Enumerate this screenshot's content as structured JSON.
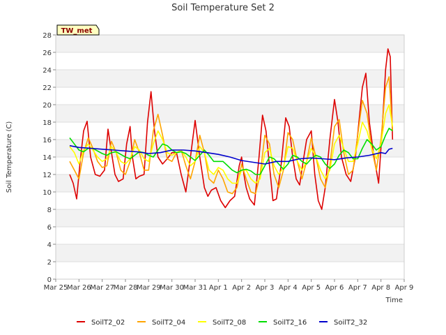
{
  "chart_data": {
    "type": "line",
    "title": "Soil Temperature Set 2",
    "xlabel": "Time",
    "ylabel": "Soil Temperature (C)",
    "tag": "TW_met",
    "ylim": [
      0,
      28
    ],
    "yticks": [
      "0",
      "2",
      "4",
      "6",
      "8",
      "10",
      "12",
      "14",
      "16",
      "18",
      "20",
      "22",
      "24",
      "26",
      "28"
    ],
    "xlim": [
      0,
      15
    ],
    "xticks": [
      "Mar 25",
      "Mar 26",
      "Mar 27",
      "Mar 28",
      "Mar 29",
      "Mar 30",
      "Mar 31",
      "Apr 1",
      "Apr 2",
      "Apr 3",
      "Apr 4",
      "Apr 5",
      "Apr 6",
      "Apr 7",
      "Apr 8",
      "Apr 9"
    ],
    "grid": true,
    "legend_position": "bottom",
    "series": [
      {
        "name": "SoilT2_02",
        "color": "#dd0000",
        "x": [
          0.6,
          0.75,
          0.9,
          1.05,
          1.2,
          1.35,
          1.5,
          1.7,
          1.9,
          2.1,
          2.25,
          2.4,
          2.55,
          2.7,
          2.9,
          3.05,
          3.2,
          3.3,
          3.45,
          3.6,
          3.8,
          3.95,
          4.1,
          4.25,
          4.4,
          4.6,
          4.8,
          5.0,
          5.2,
          5.4,
          5.6,
          5.8,
          6.0,
          6.2,
          6.4,
          6.55,
          6.7,
          6.9,
          7.1,
          7.3,
          7.5,
          7.7,
          7.9,
          8.0,
          8.1,
          8.2,
          8.35,
          8.55,
          8.75,
          8.9,
          9.05,
          9.2,
          9.35,
          9.5,
          9.7,
          9.9,
          10.05,
          10.2,
          10.35,
          10.5,
          10.65,
          10.8,
          11.0,
          11.15,
          11.3,
          11.45,
          11.6,
          11.8,
          12.0,
          12.15,
          12.3,
          12.5,
          12.7,
          12.9,
          13.05,
          13.2,
          13.35,
          13.5,
          13.7,
          13.9,
          14.05,
          14.2,
          14.3,
          14.4,
          14.5
        ],
        "y": [
          12.0,
          11.0,
          9.2,
          13.5,
          17.0,
          18.1,
          14.0,
          12.0,
          11.8,
          12.5,
          17.2,
          14.5,
          12.0,
          11.2,
          11.5,
          15.5,
          17.5,
          14.0,
          11.5,
          11.8,
          12.0,
          18.0,
          21.5,
          17.0,
          14.0,
          13.2,
          13.8,
          14.5,
          14.5,
          12.0,
          10.0,
          14.0,
          18.2,
          14.0,
          10.5,
          9.5,
          10.2,
          10.5,
          9.0,
          8.2,
          9.0,
          9.5,
          13.0,
          14.0,
          12.0,
          10.5,
          9.2,
          8.5,
          14.0,
          18.8,
          17.0,
          13.0,
          9.0,
          9.2,
          13.0,
          18.5,
          17.5,
          14.0,
          11.5,
          10.8,
          13.5,
          16.0,
          17.0,
          12.0,
          9.0,
          8.0,
          10.5,
          16.0,
          20.6,
          18.0,
          14.0,
          12.0,
          11.2,
          14.0,
          18.0,
          22.0,
          23.6,
          18.0,
          14.0,
          11.0,
          17.0,
          24.0,
          26.4,
          25.5,
          16.0
        ]
      },
      {
        "name": "SoilT2_04",
        "color": "#ffa500",
        "x": [
          0.6,
          0.8,
          1.0,
          1.2,
          1.4,
          1.6,
          1.8,
          2.0,
          2.2,
          2.4,
          2.6,
          2.8,
          3.0,
          3.2,
          3.4,
          3.6,
          3.8,
          4.0,
          4.2,
          4.4,
          4.6,
          4.8,
          5.0,
          5.2,
          5.4,
          5.6,
          5.8,
          6.0,
          6.2,
          6.4,
          6.6,
          6.8,
          7.0,
          7.2,
          7.4,
          7.6,
          7.8,
          8.0,
          8.2,
          8.4,
          8.6,
          8.8,
          9.0,
          9.2,
          9.4,
          9.6,
          9.8,
          10.0,
          10.2,
          10.4,
          10.6,
          10.8,
          11.0,
          11.2,
          11.4,
          11.6,
          11.8,
          12.0,
          12.2,
          12.4,
          12.6,
          12.8,
          13.0,
          13.2,
          13.4,
          13.6,
          13.8,
          14.0,
          14.2,
          14.35,
          14.5
        ],
        "y": [
          13.5,
          12.5,
          11.5,
          14.5,
          16.2,
          15.0,
          13.5,
          12.8,
          13.0,
          15.8,
          14.5,
          12.5,
          12.0,
          13.5,
          16.0,
          14.5,
          12.5,
          12.5,
          17.0,
          18.9,
          16.5,
          13.8,
          13.5,
          14.5,
          14.8,
          13.0,
          11.5,
          13.5,
          16.5,
          14.5,
          11.5,
          11.0,
          12.5,
          11.5,
          10.0,
          9.8,
          10.5,
          13.2,
          11.5,
          10.0,
          9.8,
          12.0,
          16.5,
          15.5,
          12.0,
          10.5,
          12.5,
          16.8,
          16.0,
          13.5,
          11.5,
          13.5,
          16.2,
          14.0,
          11.5,
          10.5,
          13.0,
          17.5,
          18.3,
          14.5,
          12.0,
          12.5,
          16.5,
          20.5,
          19.0,
          15.0,
          12.5,
          16.0,
          22.0,
          23.2,
          17.0
        ]
      },
      {
        "name": "SoilT2_08",
        "color": "#ffff00",
        "x": [
          0.6,
          0.8,
          1.0,
          1.2,
          1.4,
          1.6,
          1.8,
          2.0,
          2.2,
          2.4,
          2.6,
          2.8,
          3.0,
          3.2,
          3.4,
          3.6,
          3.8,
          4.0,
          4.2,
          4.4,
          4.6,
          4.8,
          5.0,
          5.2,
          5.4,
          5.6,
          5.8,
          6.0,
          6.2,
          6.4,
          6.6,
          6.8,
          7.0,
          7.2,
          7.4,
          7.6,
          7.8,
          8.0,
          8.2,
          8.4,
          8.6,
          8.8,
          9.0,
          9.2,
          9.4,
          9.6,
          9.8,
          10.0,
          10.2,
          10.4,
          10.6,
          10.8,
          11.0,
          11.2,
          11.4,
          11.6,
          11.8,
          12.0,
          12.2,
          12.4,
          12.6,
          12.8,
          13.0,
          13.2,
          13.4,
          13.6,
          13.8,
          14.0,
          14.2,
          14.35,
          14.5
        ],
        "y": [
          15.2,
          14.5,
          13.2,
          14.8,
          15.5,
          14.8,
          14.0,
          13.5,
          13.8,
          15.2,
          14.5,
          13.5,
          13.2,
          13.8,
          15.2,
          14.8,
          13.8,
          13.5,
          15.5,
          17.0,
          16.0,
          14.5,
          14.2,
          14.5,
          14.8,
          14.0,
          13.0,
          13.5,
          15.2,
          14.5,
          12.5,
          12.0,
          12.8,
          12.5,
          11.5,
          11.0,
          11.0,
          12.5,
          12.5,
          11.5,
          11.0,
          11.5,
          14.5,
          15.0,
          13.0,
          12.0,
          12.8,
          15.2,
          15.0,
          13.5,
          12.5,
          13.5,
          15.0,
          14.0,
          12.5,
          11.5,
          12.5,
          15.5,
          16.5,
          15.0,
          13.5,
          13.5,
          15.5,
          18.0,
          17.0,
          15.0,
          13.8,
          15.5,
          19.0,
          20.0,
          17.5
        ]
      },
      {
        "name": "SoilT2_16",
        "color": "#00dd00",
        "x": [
          0.6,
          0.8,
          1.0,
          1.2,
          1.4,
          1.6,
          1.8,
          2.0,
          2.2,
          2.4,
          2.6,
          2.8,
          3.0,
          3.2,
          3.4,
          3.6,
          3.8,
          4.0,
          4.2,
          4.4,
          4.6,
          4.8,
          5.0,
          5.2,
          5.4,
          5.6,
          5.8,
          6.0,
          6.2,
          6.4,
          6.6,
          6.8,
          7.0,
          7.2,
          7.4,
          7.6,
          7.8,
          8.0,
          8.2,
          8.4,
          8.6,
          8.8,
          9.0,
          9.2,
          9.4,
          9.6,
          9.8,
          10.0,
          10.2,
          10.4,
          10.6,
          10.8,
          11.0,
          11.2,
          11.4,
          11.6,
          11.8,
          12.0,
          12.2,
          12.4,
          12.6,
          12.8,
          13.0,
          13.2,
          13.4,
          13.6,
          13.8,
          14.0,
          14.2,
          14.35,
          14.5
        ],
        "y": [
          16.2,
          15.5,
          14.8,
          14.6,
          15.0,
          15.0,
          14.7,
          14.4,
          14.2,
          14.5,
          14.6,
          14.3,
          14.0,
          13.8,
          14.2,
          14.6,
          14.5,
          14.2,
          14.0,
          14.8,
          15.5,
          15.3,
          14.8,
          14.5,
          14.6,
          14.4,
          14.0,
          13.6,
          14.2,
          14.8,
          14.2,
          13.5,
          13.5,
          13.5,
          13.0,
          12.5,
          12.2,
          12.5,
          12.6,
          12.4,
          12.0,
          12.0,
          13.0,
          14.0,
          13.8,
          13.2,
          12.6,
          13.2,
          14.2,
          14.0,
          13.5,
          13.2,
          13.8,
          14.2,
          14.0,
          13.2,
          12.7,
          13.2,
          14.2,
          14.8,
          14.5,
          13.8,
          13.8,
          15.0,
          16.0,
          15.5,
          14.8,
          15.2,
          16.5,
          17.3,
          17.0
        ]
      },
      {
        "name": "SoilT2_32",
        "color": "#0000cc",
        "x": [
          0.6,
          1.0,
          1.5,
          2.0,
          2.5,
          3.0,
          3.5,
          4.0,
          4.5,
          5.0,
          5.5,
          6.0,
          6.5,
          7.0,
          7.5,
          8.0,
          8.5,
          9.0,
          9.5,
          10.0,
          10.5,
          11.0,
          11.5,
          12.0,
          12.5,
          13.0,
          13.5,
          14.0,
          14.2,
          14.35,
          14.5
        ],
        "y": [
          15.3,
          15.1,
          15.0,
          14.9,
          14.8,
          14.7,
          14.6,
          14.4,
          14.5,
          14.8,
          14.8,
          14.7,
          14.5,
          14.3,
          14.0,
          13.6,
          13.4,
          13.2,
          13.5,
          13.5,
          13.8,
          13.9,
          13.8,
          13.7,
          13.9,
          14.0,
          14.2,
          14.5,
          14.4,
          14.9,
          15.0
        ]
      }
    ]
  }
}
